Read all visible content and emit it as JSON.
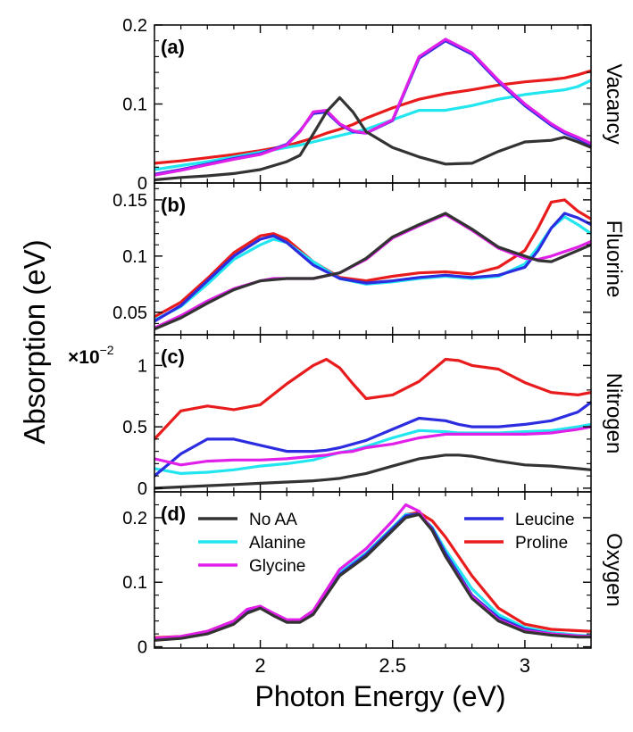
{
  "figure": {
    "ylabel": "Absorption (eV)",
    "xlabel": "Photon Energy (eV)",
    "x_ticks": [
      "2",
      "2.5",
      "3"
    ],
    "legend": {
      "No AA": "No AA",
      "Alanine": "Alanine",
      "Glycine": "Glycine",
      "Leucine": "Leucine",
      "Proline": "Proline"
    }
  },
  "series_colors": {
    "No AA": "#333333",
    "Alanine": "#22e6ef",
    "Glycine": "#e020e8",
    "Leucine": "#2c2ce0",
    "Proline": "#e81c1c"
  },
  "chart_data": [
    {
      "type": "line",
      "panel": "(a)",
      "side_label": "Vacancy",
      "xlim": [
        1.6,
        3.25
      ],
      "ylim": [
        0,
        0.2
      ],
      "yticks": [
        "0",
        "0.1",
        "0.2"
      ],
      "multiplier": "",
      "x": [
        1.6,
        1.7,
        1.8,
        1.9,
        2.0,
        2.1,
        2.15,
        2.2,
        2.25,
        2.3,
        2.35,
        2.4,
        2.5,
        2.6,
        2.7,
        2.8,
        2.9,
        3.0,
        3.1,
        3.15,
        3.2,
        3.25
      ],
      "series": [
        {
          "name": "No AA",
          "values": [
            0.004,
            0.007,
            0.009,
            0.012,
            0.017,
            0.027,
            0.035,
            0.062,
            0.09,
            0.108,
            0.09,
            0.065,
            0.045,
            0.033,
            0.024,
            0.025,
            0.04,
            0.052,
            0.054,
            0.058,
            0.052,
            0.045
          ]
        },
        {
          "name": "Alanine",
          "values": [
            0.017,
            0.022,
            0.027,
            0.033,
            0.039,
            0.045,
            0.048,
            0.052,
            0.056,
            0.06,
            0.064,
            0.068,
            0.08,
            0.092,
            0.092,
            0.098,
            0.106,
            0.112,
            0.116,
            0.118,
            0.122,
            0.13
          ]
        },
        {
          "name": "Glycine",
          "values": [
            0.01,
            0.016,
            0.023,
            0.03,
            0.036,
            0.048,
            0.065,
            0.09,
            0.092,
            0.075,
            0.066,
            0.063,
            0.08,
            0.16,
            0.182,
            0.165,
            0.13,
            0.1,
            0.075,
            0.065,
            0.058,
            0.05
          ]
        },
        {
          "name": "Leucine",
          "values": [
            0.011,
            0.017,
            0.024,
            0.031,
            0.037,
            0.049,
            0.066,
            0.088,
            0.09,
            0.074,
            0.065,
            0.063,
            0.079,
            0.158,
            0.18,
            0.163,
            0.128,
            0.098,
            0.073,
            0.063,
            0.056,
            0.048
          ]
        },
        {
          "name": "Proline",
          "values": [
            0.025,
            0.028,
            0.032,
            0.036,
            0.041,
            0.047,
            0.052,
            0.057,
            0.063,
            0.068,
            0.074,
            0.082,
            0.095,
            0.106,
            0.113,
            0.118,
            0.124,
            0.128,
            0.131,
            0.133,
            0.137,
            0.142
          ]
        }
      ]
    },
    {
      "type": "line",
      "panel": "(b)",
      "side_label": "Fluorine",
      "xlim": [
        1.6,
        3.25
      ],
      "ylim": [
        0.03,
        0.165
      ],
      "yticks": [
        "0.05",
        "0.1",
        "0.15"
      ],
      "multiplier": "",
      "x": [
        1.6,
        1.7,
        1.8,
        1.9,
        2.0,
        2.05,
        2.1,
        2.2,
        2.3,
        2.4,
        2.5,
        2.6,
        2.7,
        2.8,
        2.9,
        3.0,
        3.05,
        3.1,
        3.15,
        3.2,
        3.25
      ],
      "series": [
        {
          "name": "No AA",
          "values": [
            0.035,
            0.045,
            0.058,
            0.07,
            0.078,
            0.079,
            0.08,
            0.08,
            0.085,
            0.098,
            0.117,
            0.128,
            0.138,
            0.124,
            0.108,
            0.1,
            0.096,
            0.095,
            0.1,
            0.105,
            0.11
          ]
        },
        {
          "name": "Alanine",
          "values": [
            0.043,
            0.055,
            0.075,
            0.097,
            0.11,
            0.115,
            0.112,
            0.095,
            0.08,
            0.075,
            0.077,
            0.08,
            0.082,
            0.08,
            0.082,
            0.093,
            0.108,
            0.125,
            0.135,
            0.128,
            0.12
          ]
        },
        {
          "name": "Glycine",
          "values": [
            0.036,
            0.047,
            0.06,
            0.071,
            0.078,
            0.08,
            0.08,
            0.08,
            0.085,
            0.097,
            0.116,
            0.127,
            0.137,
            0.123,
            0.107,
            0.098,
            0.097,
            0.1,
            0.104,
            0.108,
            0.113
          ]
        },
        {
          "name": "Leucine",
          "values": [
            0.042,
            0.056,
            0.078,
            0.1,
            0.115,
            0.118,
            0.112,
            0.092,
            0.08,
            0.076,
            0.078,
            0.081,
            0.083,
            0.081,
            0.083,
            0.09,
            0.105,
            0.125,
            0.138,
            0.134,
            0.128
          ]
        },
        {
          "name": "Proline",
          "values": [
            0.046,
            0.059,
            0.08,
            0.103,
            0.118,
            0.12,
            0.115,
            0.095,
            0.081,
            0.078,
            0.082,
            0.085,
            0.086,
            0.084,
            0.09,
            0.105,
            0.125,
            0.148,
            0.15,
            0.14,
            0.133
          ]
        }
      ]
    },
    {
      "type": "line",
      "panel": "(c)",
      "side_label": "Nitrogen",
      "xlim": [
        1.6,
        3.25
      ],
      "ylim": [
        -0.03,
        1.25
      ],
      "yticks": [
        "0",
        "0.5",
        "1"
      ],
      "multiplier": "×10",
      "multiplier_exp": "−2",
      "x": [
        1.6,
        1.7,
        1.8,
        1.9,
        2.0,
        2.1,
        2.2,
        2.25,
        2.3,
        2.35,
        2.4,
        2.5,
        2.6,
        2.7,
        2.75,
        2.8,
        2.9,
        3.0,
        3.1,
        3.2,
        3.25
      ],
      "series": [
        {
          "name": "No AA",
          "values": [
            0.0,
            0.01,
            0.02,
            0.03,
            0.04,
            0.05,
            0.06,
            0.07,
            0.08,
            0.1,
            0.12,
            0.18,
            0.24,
            0.27,
            0.27,
            0.26,
            0.22,
            0.19,
            0.18,
            0.16,
            0.15
          ]
        },
        {
          "name": "Alanine",
          "values": [
            0.16,
            0.12,
            0.13,
            0.15,
            0.18,
            0.2,
            0.23,
            0.26,
            0.29,
            0.31,
            0.34,
            0.41,
            0.47,
            0.46,
            0.45,
            0.45,
            0.45,
            0.46,
            0.47,
            0.5,
            0.52
          ]
        },
        {
          "name": "Glycine",
          "values": [
            0.24,
            0.19,
            0.22,
            0.23,
            0.23,
            0.24,
            0.26,
            0.27,
            0.29,
            0.3,
            0.33,
            0.36,
            0.41,
            0.44,
            0.44,
            0.44,
            0.44,
            0.44,
            0.45,
            0.48,
            0.5
          ]
        },
        {
          "name": "Leucine",
          "values": [
            0.1,
            0.28,
            0.4,
            0.4,
            0.35,
            0.3,
            0.3,
            0.31,
            0.33,
            0.36,
            0.39,
            0.48,
            0.57,
            0.55,
            0.52,
            0.5,
            0.5,
            0.52,
            0.55,
            0.62,
            0.7
          ]
        },
        {
          "name": "Proline",
          "values": [
            0.4,
            0.63,
            0.67,
            0.64,
            0.68,
            0.85,
            1.0,
            1.05,
            0.98,
            0.85,
            0.73,
            0.76,
            0.87,
            1.05,
            1.04,
            1.0,
            0.97,
            0.86,
            0.78,
            0.76,
            0.78
          ]
        }
      ]
    },
    {
      "type": "line",
      "panel": "(d)",
      "side_label": "Oxygen",
      "xlim": [
        1.6,
        3.25
      ],
      "ylim": [
        -0.002,
        0.24
      ],
      "yticks": [
        "0",
        "0.1",
        "0.2"
      ],
      "multiplier": "",
      "x": [
        1.6,
        1.7,
        1.8,
        1.9,
        1.95,
        2.0,
        2.05,
        2.1,
        2.15,
        2.2,
        2.3,
        2.4,
        2.5,
        2.55,
        2.6,
        2.65,
        2.7,
        2.8,
        2.9,
        3.0,
        3.1,
        3.2,
        3.25
      ],
      "series": [
        {
          "name": "No AA",
          "values": [
            0.01,
            0.013,
            0.02,
            0.035,
            0.052,
            0.06,
            0.048,
            0.038,
            0.038,
            0.05,
            0.11,
            0.14,
            0.18,
            0.2,
            0.205,
            0.18,
            0.14,
            0.075,
            0.04,
            0.023,
            0.018,
            0.015,
            0.015
          ]
        },
        {
          "name": "Alanine",
          "values": [
            0.012,
            0.015,
            0.022,
            0.038,
            0.055,
            0.06,
            0.05,
            0.04,
            0.04,
            0.052,
            0.115,
            0.145,
            0.185,
            0.205,
            0.205,
            0.185,
            0.15,
            0.09,
            0.05,
            0.03,
            0.022,
            0.018,
            0.017
          ]
        },
        {
          "name": "Glycine",
          "values": [
            0.013,
            0.016,
            0.024,
            0.04,
            0.058,
            0.063,
            0.052,
            0.042,
            0.042,
            0.056,
            0.12,
            0.152,
            0.195,
            0.22,
            0.21,
            0.18,
            0.14,
            0.078,
            0.042,
            0.025,
            0.02,
            0.017,
            0.016
          ]
        },
        {
          "name": "Leucine",
          "values": [
            0.011,
            0.014,
            0.021,
            0.037,
            0.054,
            0.061,
            0.05,
            0.039,
            0.039,
            0.051,
            0.112,
            0.143,
            0.183,
            0.203,
            0.206,
            0.183,
            0.145,
            0.08,
            0.045,
            0.027,
            0.02,
            0.016,
            0.016
          ]
        },
        {
          "name": "Proline",
          "values": [
            0.014,
            0.016,
            0.024,
            0.04,
            0.056,
            0.062,
            0.05,
            0.04,
            0.04,
            0.052,
            0.115,
            0.145,
            0.185,
            0.205,
            0.208,
            0.195,
            0.17,
            0.11,
            0.06,
            0.035,
            0.027,
            0.025,
            0.024
          ]
        }
      ]
    }
  ]
}
